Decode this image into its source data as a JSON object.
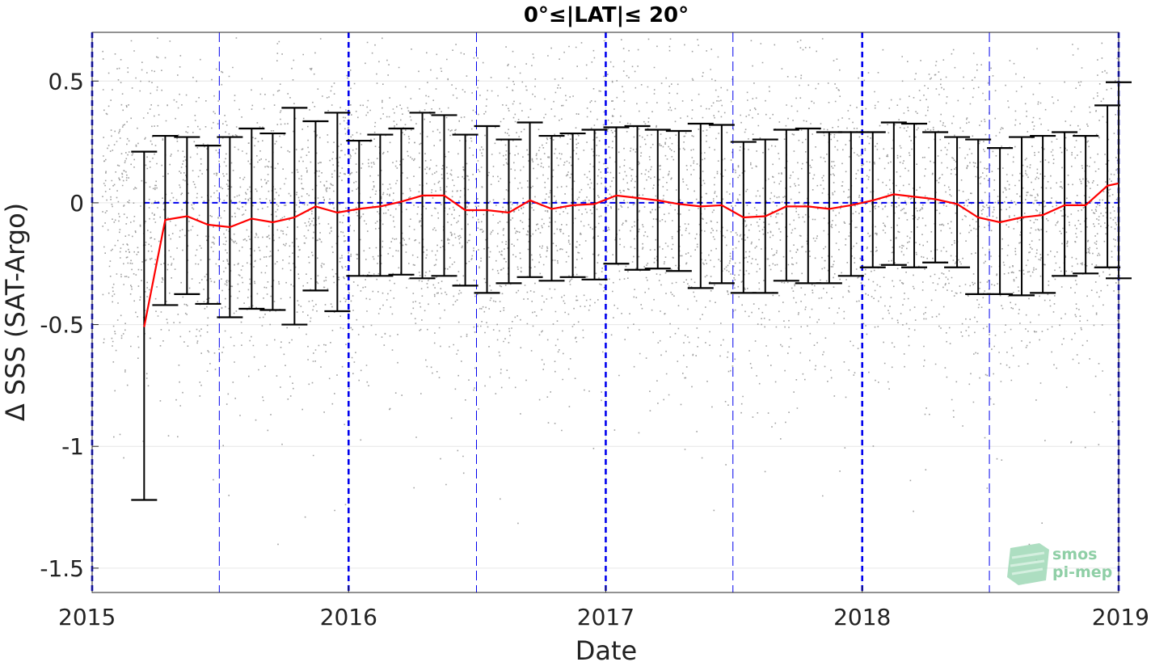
{
  "chart_data": {
    "type": "scatter",
    "title": "0°≤|LAT|≤ 20°",
    "xlabel": "Date",
    "ylabel": "Δ SSS (SAT-Argo)",
    "xlim": [
      "2015-01-01",
      "2019-01-01"
    ],
    "ylim": [
      -1.6,
      0.7
    ],
    "x_ticks": [
      "2015",
      "2016",
      "2017",
      "2018",
      "2019"
    ],
    "y_ticks": [
      0.5,
      0,
      -0.5,
      -1,
      -1.5
    ],
    "y_tick_labels": [
      "0.5",
      "0",
      "-0.5",
      "-1",
      "-1.5"
    ],
    "grid": true,
    "annual_lines": [
      "2015-01-01",
      "2016-01-01",
      "2017-01-01",
      "2018-01-01",
      "2019-01-01"
    ],
    "semiannual_lines": [
      "2015-07-01",
      "2016-07-01",
      "2017-07-01",
      "2018-07-01"
    ],
    "zero_line": 0,
    "colors": {
      "scatter": "#808080",
      "median": "#ff0000",
      "errorbar": "#000000",
      "reference": "#0000ee",
      "grid": "#e6e6e6"
    },
    "scatter": {
      "description": "individual satellite minus Argo match-up differences",
      "start": "2015-01-15",
      "end": "2019-01-01"
    },
    "series": [
      {
        "type": "line-with-errorbars",
        "x": [
          "2015-03-16",
          "2015-04-15",
          "2015-05-16",
          "2015-06-15",
          "2015-07-16",
          "2015-08-16",
          "2015-09-15",
          "2015-10-16",
          "2015-11-15",
          "2015-12-16",
          "2016-01-16",
          "2016-02-15",
          "2016-03-16",
          "2016-04-15",
          "2016-05-16",
          "2016-06-15",
          "2016-07-16",
          "2016-08-16",
          "2016-09-15",
          "2016-10-16",
          "2016-11-15",
          "2016-12-16",
          "2017-01-16",
          "2017-02-15",
          "2017-03-16",
          "2017-04-15",
          "2017-05-16",
          "2017-06-15",
          "2017-07-16",
          "2017-08-16",
          "2017-09-15",
          "2017-10-16",
          "2017-11-15",
          "2017-12-16",
          "2018-01-16",
          "2018-02-15",
          "2018-03-16",
          "2018-04-15",
          "2018-05-16",
          "2018-06-15",
          "2018-07-16",
          "2018-08-16",
          "2018-09-15",
          "2018-10-16",
          "2018-11-15",
          "2018-12-16",
          "2019-01-01"
        ],
        "values": [
          -0.51,
          -0.07,
          -0.055,
          -0.09,
          -0.1,
          -0.065,
          -0.08,
          -0.06,
          -0.015,
          -0.04,
          -0.025,
          -0.015,
          0.005,
          0.03,
          0.03,
          -0.03,
          -0.03,
          -0.04,
          0.01,
          -0.025,
          -0.01,
          -0.005,
          0.03,
          0.02,
          0.01,
          -0.005,
          -0.015,
          -0.01,
          -0.06,
          -0.055,
          -0.015,
          -0.015,
          -0.025,
          -0.01,
          0.01,
          0.035,
          0.025,
          0.015,
          -0.005,
          -0.06,
          -0.08,
          -0.06,
          -0.05,
          -0.01,
          -0.01,
          0.07,
          0.08
        ],
        "upper": [
          0.21,
          0.275,
          0.27,
          0.235,
          0.27,
          0.305,
          0.285,
          0.39,
          0.335,
          0.37,
          0.255,
          0.28,
          0.305,
          0.37,
          0.36,
          0.28,
          0.315,
          0.26,
          0.33,
          0.275,
          0.285,
          0.3,
          0.31,
          0.315,
          0.3,
          0.295,
          0.325,
          0.32,
          0.25,
          0.26,
          0.3,
          0.305,
          0.29,
          0.29,
          0.29,
          0.33,
          0.325,
          0.29,
          0.27,
          0.26,
          0.225,
          0.27,
          0.275,
          0.29,
          0.275,
          0.4,
          0.495
        ],
        "lower": [
          -1.22,
          -0.42,
          -0.375,
          -0.415,
          -0.47,
          -0.435,
          -0.44,
          -0.5,
          -0.36,
          -0.445,
          -0.3,
          -0.3,
          -0.295,
          -0.31,
          -0.3,
          -0.34,
          -0.37,
          -0.33,
          -0.305,
          -0.32,
          -0.305,
          -0.315,
          -0.25,
          -0.275,
          -0.27,
          -0.28,
          -0.35,
          -0.33,
          -0.37,
          -0.37,
          -0.32,
          -0.33,
          -0.33,
          -0.3,
          -0.265,
          -0.255,
          -0.265,
          -0.245,
          -0.265,
          -0.375,
          -0.375,
          -0.38,
          -0.37,
          -0.3,
          -0.29,
          -0.265,
          -0.31
        ]
      }
    ]
  },
  "logo": {
    "line1": "smos",
    "line2": "pi-mep"
  }
}
